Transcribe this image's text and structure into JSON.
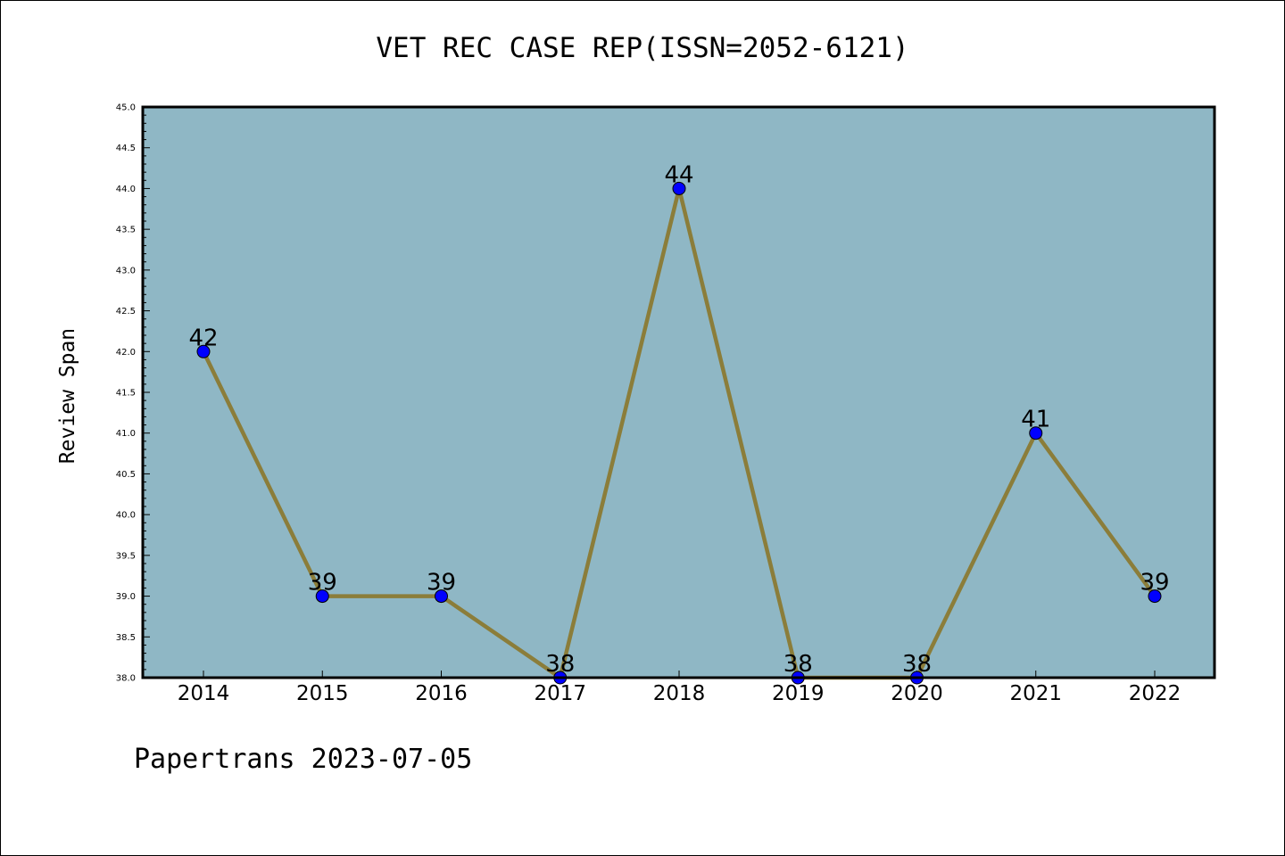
{
  "chart_data": {
    "type": "line",
    "title": "VET REC CASE REP(ISSN=2052-6121)",
    "xlabel": "",
    "ylabel": "Review Span",
    "categories": [
      "2014",
      "2015",
      "2016",
      "2017",
      "2018",
      "2019",
      "2020",
      "2021",
      "2022"
    ],
    "values": [
      42,
      39,
      39,
      38,
      44,
      38,
      38,
      41,
      39
    ],
    "data_labels": [
      "42",
      "39",
      "39",
      "38",
      "44",
      "38",
      "38",
      "41",
      "39"
    ],
    "ylim": [
      38.0,
      45.0
    ],
    "yticks": [
      "38.0",
      "38.5",
      "39.0",
      "39.5",
      "40.0",
      "40.5",
      "41.0",
      "41.5",
      "42.0",
      "42.5",
      "43.0",
      "43.5",
      "44.0",
      "44.5",
      "45.0"
    ],
    "grid": false,
    "colors": {
      "plot_background": "#8fb7c5",
      "line": "#8b7d3a",
      "marker": "#0000ff"
    }
  },
  "footer": "Papertrans 2023-07-05"
}
